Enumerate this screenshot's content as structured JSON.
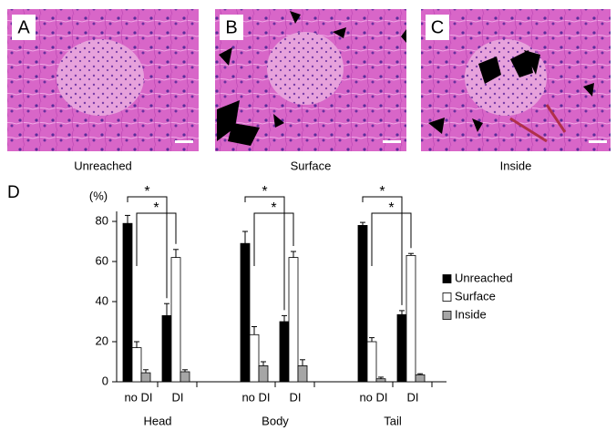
{
  "panels": [
    {
      "label": "A",
      "caption": "Unreached"
    },
    {
      "label": "B",
      "caption": "Surface"
    },
    {
      "label": "C",
      "caption": "Inside"
    }
  ],
  "chart_data": {
    "type": "bar",
    "panel_label": "D",
    "ylabel": "(%)",
    "groups": [
      "Head",
      "Body",
      "Tail"
    ],
    "categories": [
      "no DI",
      "DI",
      "no DI",
      "DI",
      "no DI",
      "DI"
    ],
    "series": [
      {
        "name": "Unreached",
        "color": "#000000",
        "values": [
          79,
          33,
          69,
          30,
          78,
          33.5
        ],
        "errors": [
          4,
          6,
          6,
          3,
          1.5,
          2
        ]
      },
      {
        "name": "Surface",
        "color": "#ffffff",
        "values": [
          17,
          62,
          23.5,
          62,
          20,
          63
        ],
        "errors": [
          3,
          4,
          4,
          3,
          2,
          1
        ]
      },
      {
        "name": "Inside",
        "color": "#a6a6a6",
        "values": [
          4.5,
          5,
          8,
          8,
          1.5,
          3.5
        ],
        "errors": [
          1.5,
          1,
          2,
          3,
          0.8,
          0.5
        ]
      }
    ],
    "annotations": [
      "*",
      "*",
      "*",
      "*",
      "*",
      "*"
    ],
    "ylim": [
      0,
      85
    ],
    "yticks": [
      0,
      20,
      40,
      60,
      80
    ]
  }
}
